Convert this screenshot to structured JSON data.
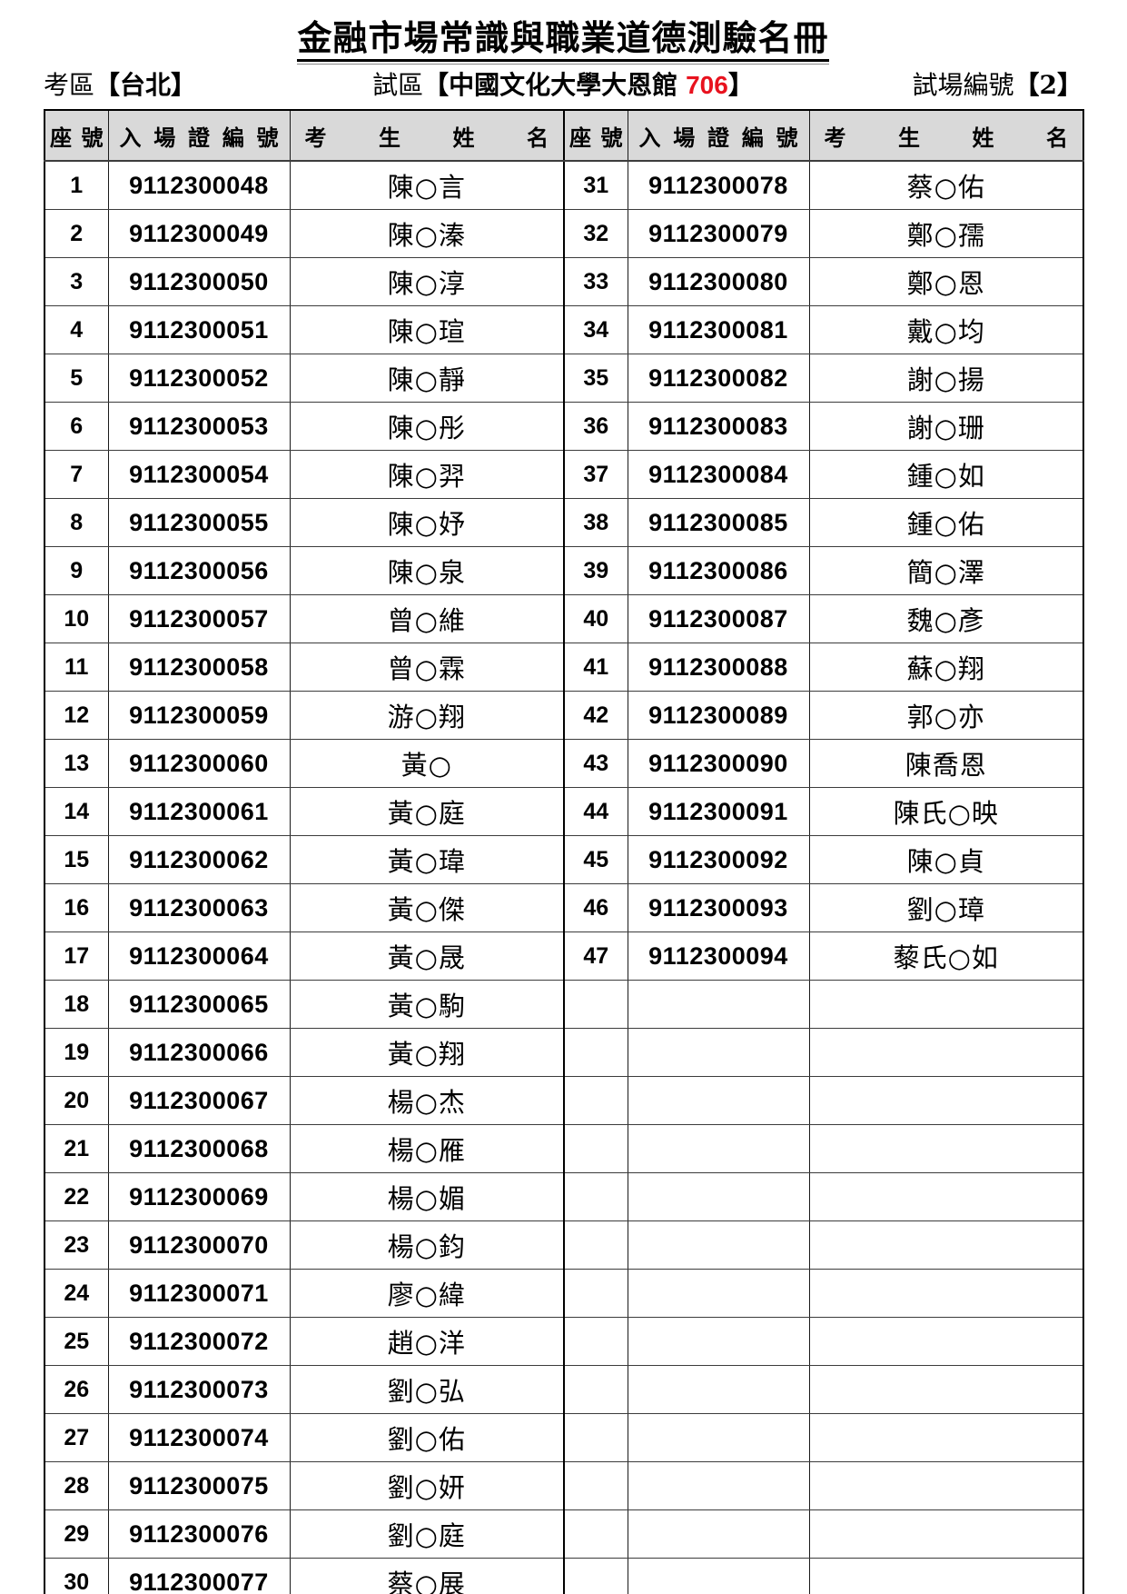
{
  "page": {
    "title": "金融市場常識與職業道德測驗名冊",
    "exam_area_label": "考區",
    "exam_area_value": "【台北】",
    "site_label": "試區",
    "site_value_prefix": "【中國文化大學大恩館",
    "site_room": "706",
    "site_value_suffix": "】",
    "room_no_label": "試場編號",
    "room_no_value": "【2】"
  },
  "colors": {
    "room_red": "#e8121e",
    "header_bg": "#d9d9d9"
  },
  "table": {
    "headers": {
      "seat": "座號",
      "ticket": "入場證編號",
      "name": "考生姓名"
    },
    "rows": [
      [
        "1",
        "9112300048",
        "陳○言",
        "31",
        "9112300078",
        "蔡○佑"
      ],
      [
        "2",
        "9112300049",
        "陳○溱",
        "32",
        "9112300079",
        "鄭○孺"
      ],
      [
        "3",
        "9112300050",
        "陳○淳",
        "33",
        "9112300080",
        "鄭○恩"
      ],
      [
        "4",
        "9112300051",
        "陳○瑄",
        "34",
        "9112300081",
        "戴○均"
      ],
      [
        "5",
        "9112300052",
        "陳○靜",
        "35",
        "9112300082",
        "謝○揚"
      ],
      [
        "6",
        "9112300053",
        "陳○彤",
        "36",
        "9112300083",
        "謝○珊"
      ],
      [
        "7",
        "9112300054",
        "陳○羿",
        "37",
        "9112300084",
        "鍾○如"
      ],
      [
        "8",
        "9112300055",
        "陳○妤",
        "38",
        "9112300085",
        "鍾○佑"
      ],
      [
        "9",
        "9112300056",
        "陳○泉",
        "39",
        "9112300086",
        "簡○澤"
      ],
      [
        "10",
        "9112300057",
        "曾○維",
        "40",
        "9112300087",
        "魏○彥"
      ],
      [
        "11",
        "9112300058",
        "曾○霖",
        "41",
        "9112300088",
        "蘇○翔"
      ],
      [
        "12",
        "9112300059",
        "游○翔",
        "42",
        "9112300089",
        "郭○亦"
      ],
      [
        "13",
        "9112300060",
        "黃○",
        "43",
        "9112300090",
        "陳喬恩"
      ],
      [
        "14",
        "9112300061",
        "黃○庭",
        "44",
        "9112300091",
        "陳氏○映"
      ],
      [
        "15",
        "9112300062",
        "黃○瑋",
        "45",
        "9112300092",
        "陳○貞"
      ],
      [
        "16",
        "9112300063",
        "黃○傑",
        "46",
        "9112300093",
        "劉○璋"
      ],
      [
        "17",
        "9112300064",
        "黃○晟",
        "47",
        "9112300094",
        "藜氏○如"
      ],
      [
        "18",
        "9112300065",
        "黃○駒",
        "",
        "",
        ""
      ],
      [
        "19",
        "9112300066",
        "黃○翔",
        "",
        "",
        ""
      ],
      [
        "20",
        "9112300067",
        "楊○杰",
        "",
        "",
        ""
      ],
      [
        "21",
        "9112300068",
        "楊○雁",
        "",
        "",
        ""
      ],
      [
        "22",
        "9112300069",
        "楊○媚",
        "",
        "",
        ""
      ],
      [
        "23",
        "9112300070",
        "楊○鈞",
        "",
        "",
        ""
      ],
      [
        "24",
        "9112300071",
        "廖○緯",
        "",
        "",
        ""
      ],
      [
        "25",
        "9112300072",
        "趙○洋",
        "",
        "",
        ""
      ],
      [
        "26",
        "9112300073",
        "劉○弘",
        "",
        "",
        ""
      ],
      [
        "27",
        "9112300074",
        "劉○佑",
        "",
        "",
        ""
      ],
      [
        "28",
        "9112300075",
        "劉○妍",
        "",
        "",
        ""
      ],
      [
        "29",
        "9112300076",
        "劉○庭",
        "",
        "",
        ""
      ],
      [
        "30",
        "9112300077",
        "蔡○展",
        "",
        "",
        ""
      ]
    ]
  }
}
